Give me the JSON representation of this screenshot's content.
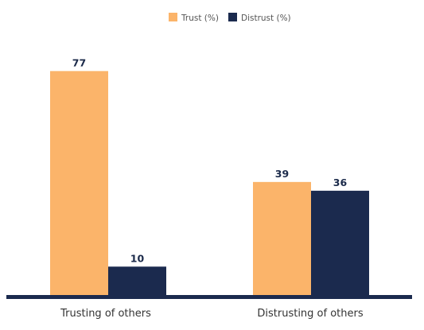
{
  "chart_data": {
    "type": "bar",
    "categories": [
      "Trusting of others",
      "Distrusting of others"
    ],
    "series": [
      {
        "name": "Trust (%)",
        "values": [
          77,
          39
        ],
        "color": "#FBB46A"
      },
      {
        "name": "Distrust (%)",
        "values": [
          10,
          36
        ],
        "color": "#1B2A4E"
      }
    ],
    "ylim": [
      0,
      85
    ],
    "grid": false,
    "legend": "top-center",
    "axis_color": "#1B2A4E"
  }
}
